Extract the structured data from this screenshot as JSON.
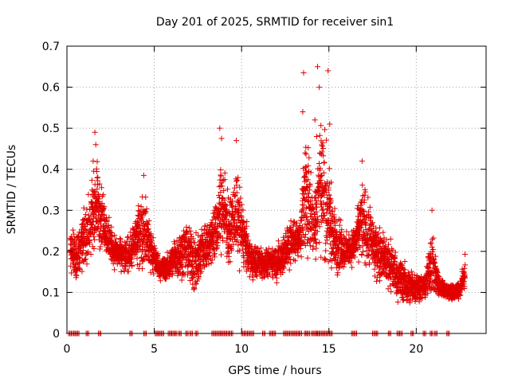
{
  "chart_data": {
    "type": "scatter",
    "title": "Day 201 of 2025, SRMTID for receiver sin1",
    "xlabel": "GPS time / hours",
    "ylabel": "SRMTID / TECUs",
    "xlim": [
      0,
      24
    ],
    "ylim": [
      0,
      0.7
    ],
    "xticks": [
      0,
      5,
      10,
      15,
      20
    ],
    "yticks": [
      0,
      0.1,
      0.2,
      0.3,
      0.4,
      0.5,
      0.6,
      0.7
    ],
    "xtick_labels": [
      "0",
      "5",
      "10",
      "15",
      "20"
    ],
    "ytick_labels": [
      "0",
      "0.1",
      "0.2",
      "0.3",
      "0.4",
      "0.5",
      "0.6",
      "0.7"
    ],
    "grid": true,
    "marker": "+",
    "color": "#e00000",
    "series": [
      {
        "name": "sin1",
        "envelope_hours": [
          0.2,
          0.5,
          0.9,
          1.3,
          1.7,
          2.1,
          2.5,
          2.9,
          3.3,
          3.7,
          4.1,
          4.5,
          4.9,
          5.3,
          5.7,
          6.1,
          6.5,
          6.9,
          7.3,
          7.7,
          8.1,
          8.5,
          8.9,
          9.3,
          9.7,
          10.1,
          10.5,
          10.9,
          11.3,
          11.7,
          12.1,
          12.5,
          12.9,
          13.3,
          13.7,
          14.1,
          14.5,
          14.9,
          15.3,
          15.7,
          16.1,
          16.5,
          16.9,
          17.3,
          17.7,
          18.1,
          18.5,
          18.9,
          19.3,
          19.7,
          20.1,
          20.5,
          20.9,
          21.3,
          21.7,
          22.1,
          22.5,
          22.8
        ],
        "envelope_low": [
          0.12,
          0.11,
          0.13,
          0.15,
          0.18,
          0.2,
          0.15,
          0.14,
          0.13,
          0.14,
          0.15,
          0.13,
          0.13,
          0.12,
          0.12,
          0.13,
          0.12,
          0.1,
          0.07,
          0.12,
          0.14,
          0.15,
          0.16,
          0.16,
          0.15,
          0.14,
          0.12,
          0.12,
          0.12,
          0.13,
          0.11,
          0.12,
          0.15,
          0.17,
          0.16,
          0.15,
          0.13,
          0.12,
          0.12,
          0.14,
          0.15,
          0.15,
          0.14,
          0.13,
          0.12,
          0.11,
          0.08,
          0.06,
          0.06,
          0.06,
          0.07,
          0.07,
          0.07,
          0.08,
          0.08,
          0.07,
          0.08,
          0.1
        ],
        "envelope_high": [
          0.3,
          0.26,
          0.3,
          0.38,
          0.47,
          0.34,
          0.28,
          0.25,
          0.24,
          0.26,
          0.34,
          0.37,
          0.25,
          0.2,
          0.2,
          0.24,
          0.27,
          0.3,
          0.27,
          0.28,
          0.3,
          0.35,
          0.47,
          0.35,
          0.44,
          0.33,
          0.24,
          0.23,
          0.22,
          0.22,
          0.24,
          0.28,
          0.31,
          0.28,
          0.56,
          0.35,
          0.62,
          0.5,
          0.34,
          0.28,
          0.25,
          0.29,
          0.41,
          0.34,
          0.28,
          0.27,
          0.25,
          0.22,
          0.19,
          0.17,
          0.16,
          0.15,
          0.29,
          0.15,
          0.13,
          0.13,
          0.13,
          0.21
        ],
        "outliers": [
          {
            "x": 1.6,
            "y": 0.49
          },
          {
            "x": 1.65,
            "y": 0.46
          },
          {
            "x": 1.5,
            "y": 0.42
          },
          {
            "x": 4.4,
            "y": 0.385
          },
          {
            "x": 8.75,
            "y": 0.5
          },
          {
            "x": 8.85,
            "y": 0.475
          },
          {
            "x": 9.7,
            "y": 0.47
          },
          {
            "x": 13.55,
            "y": 0.635
          },
          {
            "x": 13.5,
            "y": 0.54
          },
          {
            "x": 14.35,
            "y": 0.65
          },
          {
            "x": 14.45,
            "y": 0.6
          },
          {
            "x": 14.95,
            "y": 0.64
          },
          {
            "x": 15.05,
            "y": 0.51
          },
          {
            "x": 14.2,
            "y": 0.52
          },
          {
            "x": 14.3,
            "y": 0.48
          },
          {
            "x": 16.9,
            "y": 0.42
          },
          {
            "x": 20.9,
            "y": 0.3
          }
        ],
        "zero_values_hours": [
          0.1,
          0.25,
          0.4,
          0.55,
          1.1,
          1.8,
          3.6,
          4.4,
          5.05,
          5.2,
          5.4,
          5.8,
          6.0,
          6.15,
          6.4,
          6.8,
          7.05,
          7.35,
          8.3,
          8.5,
          8.65,
          8.8,
          9.0,
          9.15,
          9.35,
          10.0,
          10.2,
          10.4,
          10.55,
          11.2,
          11.6,
          11.8,
          12.4,
          12.55,
          12.75,
          12.9,
          13.1,
          13.3,
          13.6,
          13.75,
          14.0,
          14.2,
          14.3,
          14.5,
          14.7,
          14.9,
          15.05,
          16.3,
          16.45,
          17.5,
          17.65,
          18.4,
          18.9,
          19.05,
          19.7,
          20.4,
          20.8,
          21.05,
          21.75
        ]
      }
    ]
  }
}
